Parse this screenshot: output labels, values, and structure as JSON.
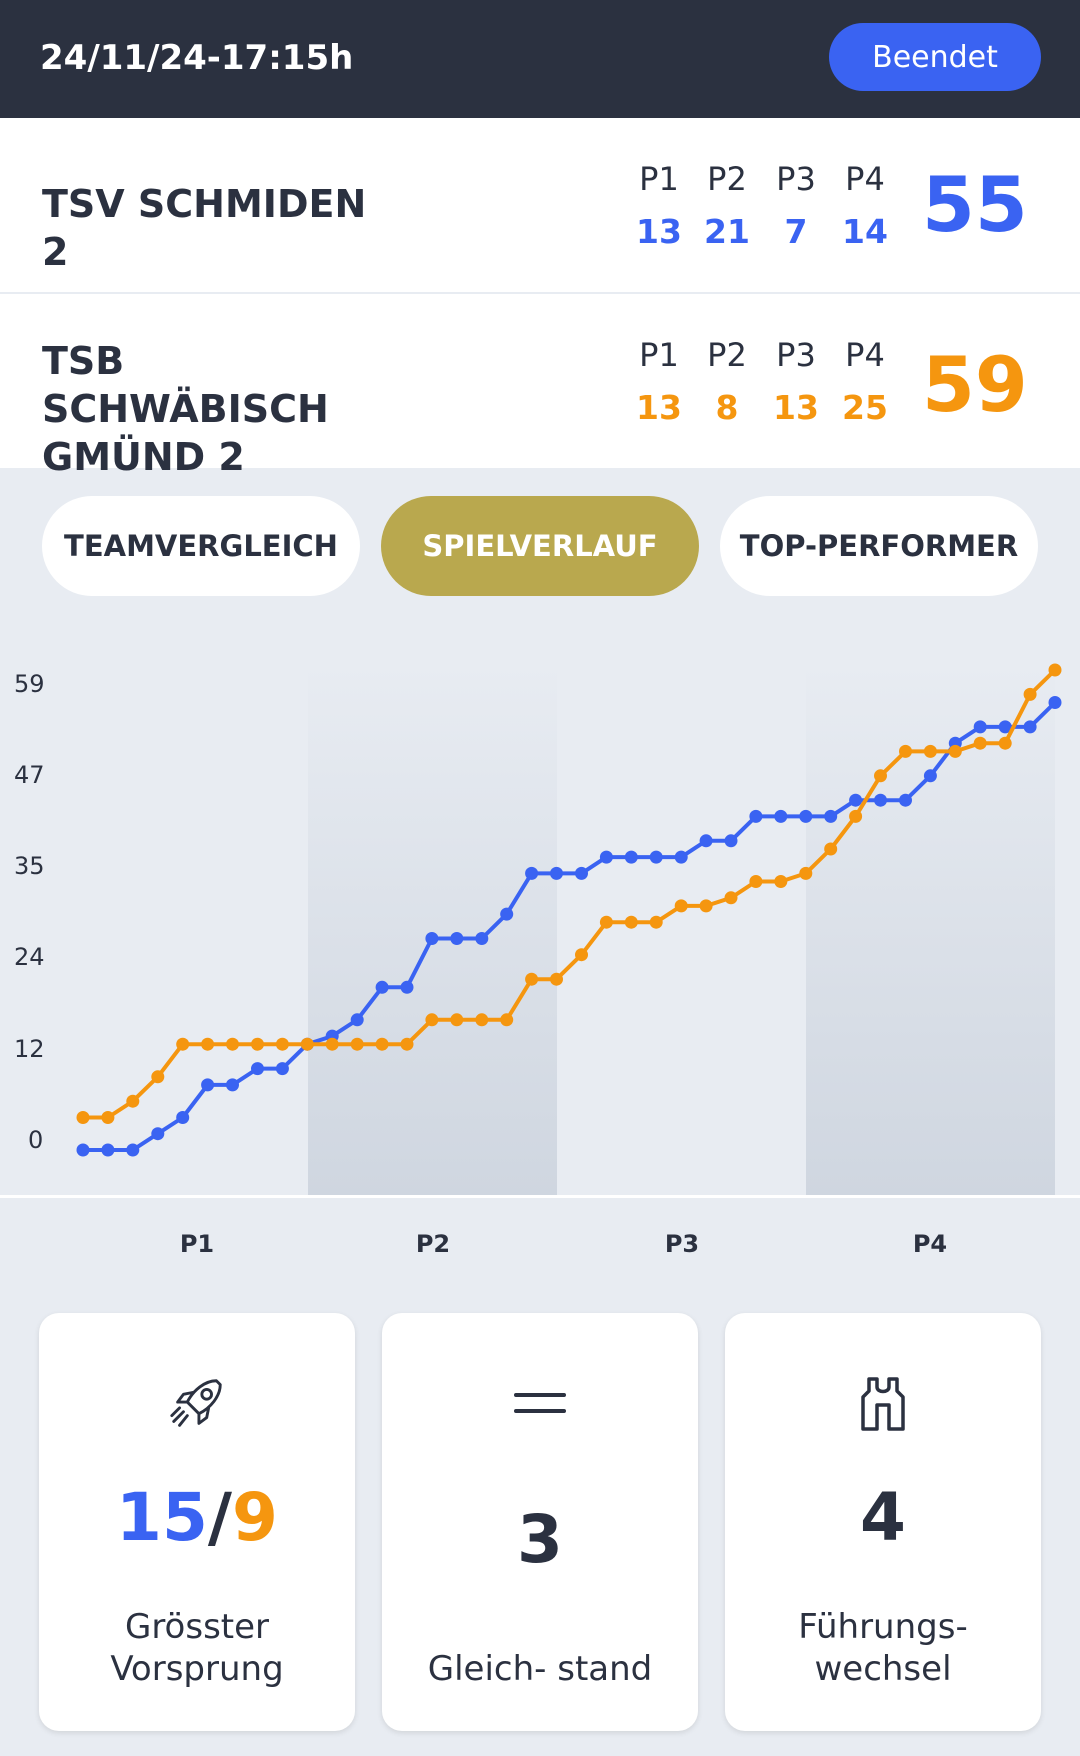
{
  "header": {
    "datetime": "24/11/24-17:15h",
    "status_label": "Beendet"
  },
  "period_labels": [
    "P1",
    "P2",
    "P3",
    "P4"
  ],
  "home": {
    "name": "TSV SCHMIDEN 2",
    "periods": [
      "13",
      "21",
      "7",
      "14"
    ],
    "total": "55"
  },
  "away": {
    "name": "TSB SCHWÄBISCH GMÜND 2",
    "periods": [
      "13",
      "8",
      "13",
      "25"
    ],
    "total": "59"
  },
  "tabs": {
    "team_compare": "TEAMVERGLEICH",
    "game_flow": "SPIELVERLAUF",
    "top_performer": "TOP-PERFORMER"
  },
  "colors": {
    "home": "#3a63f2",
    "away": "#f5960f",
    "active_tab": "#b9a84e",
    "header_bg": "#2b3140"
  },
  "chart_data": {
    "type": "line",
    "y_ticks": [
      "59",
      "47",
      "35",
      "24",
      "12",
      "0"
    ],
    "ylim": [
      0,
      59
    ],
    "x_period_labels": [
      "P1",
      "P2",
      "P3",
      "P4"
    ],
    "series": [
      {
        "name": "TSV SCHMIDEN 2",
        "color": "#3a63f2",
        "values": [
          0,
          0,
          0,
          2,
          4,
          8,
          8,
          10,
          10,
          13,
          14,
          16,
          20,
          20,
          26,
          26,
          26,
          29,
          34,
          34,
          34,
          36,
          36,
          36,
          36,
          38,
          38,
          41,
          41,
          41,
          41,
          43,
          43,
          43,
          46,
          50,
          52,
          52,
          52,
          55
        ]
      },
      {
        "name": "TSB SCHWÄBISCH GMÜND 2",
        "color": "#f5960f",
        "values": [
          4,
          4,
          6,
          9,
          13,
          13,
          13,
          13,
          13,
          13,
          13,
          13,
          13,
          13,
          16,
          16,
          16,
          16,
          21,
          21,
          24,
          28,
          28,
          28,
          30,
          30,
          31,
          33,
          33,
          34,
          37,
          41,
          46,
          49,
          49,
          49,
          50,
          50,
          56,
          59
        ]
      }
    ]
  },
  "stats": {
    "lead": {
      "icon": "rocket-icon",
      "home_value": "15",
      "separator": "/",
      "away_value": "9",
      "caption": "Grösster Vorsprung"
    },
    "ties": {
      "icon": "equals-icon",
      "value": "3",
      "caption": "Gleich- stand"
    },
    "lead_changes": {
      "icon": "vest-icon",
      "value": "4",
      "caption": "Führungs- wechsel"
    }
  }
}
